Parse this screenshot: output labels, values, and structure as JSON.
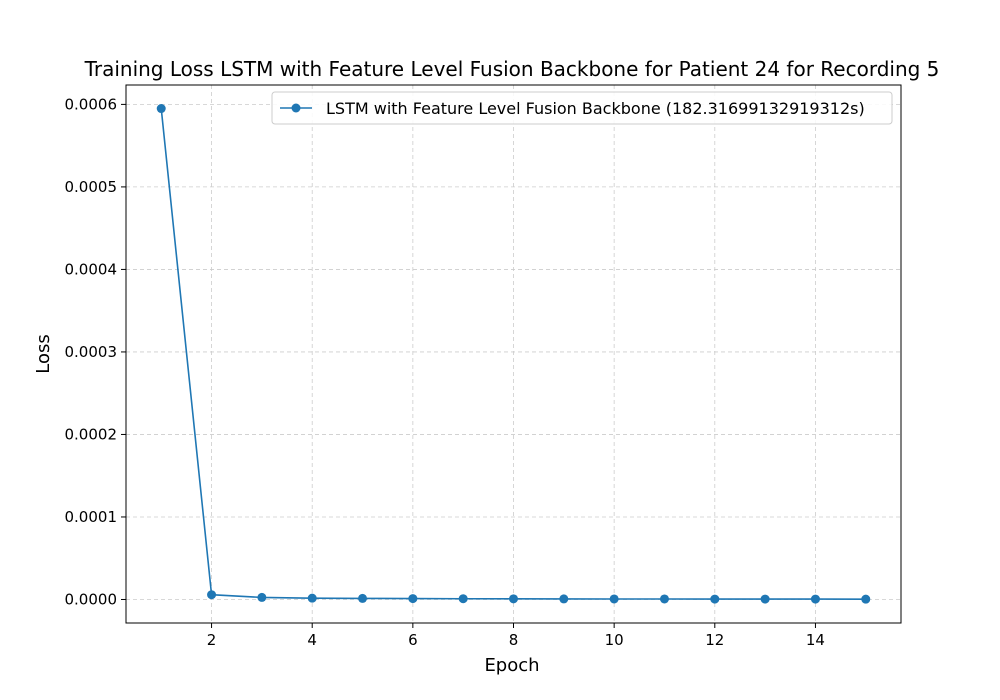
{
  "chart_data": {
    "type": "line",
    "title": "Training Loss LSTM with Feature Level Fusion Backbone for Patient 24 for Recording 5",
    "xlabel": "Epoch",
    "ylabel": "Loss",
    "xlim": [
      0.3,
      15.7
    ],
    "ylim": [
      -2.85e-05,
      0.0006235
    ],
    "xticks": [
      2,
      4,
      6,
      8,
      10,
      12,
      14
    ],
    "xtick_labels": [
      "2",
      "4",
      "6",
      "8",
      "10",
      "12",
      "14"
    ],
    "yticks": [
      0,
      0.0001,
      0.0002,
      0.0003,
      0.0004,
      0.0005,
      0.0006
    ],
    "ytick_labels": [
      "0.0000",
      "0.0001",
      "0.0002",
      "0.0003",
      "0.0004",
      "0.0005",
      "0.0006"
    ],
    "grid": true,
    "legend_position": "top-right",
    "series": [
      {
        "name": "LSTM with Feature Level Fusion Backbone (182.31699132919312s)",
        "color": "#1f77b4",
        "marker": "circle",
        "x": [
          1,
          2,
          3,
          4,
          5,
          6,
          7,
          8,
          9,
          10,
          11,
          12,
          13,
          14,
          15
        ],
        "y": [
          0.000595,
          5.8e-06,
          2.5e-06,
          1.6e-06,
          1.3e-06,
          1.1e-06,
          9e-07,
          8e-07,
          7e-07,
          6e-07,
          6e-07,
          5e-07,
          5e-07,
          5e-07,
          4e-07
        ]
      }
    ]
  }
}
